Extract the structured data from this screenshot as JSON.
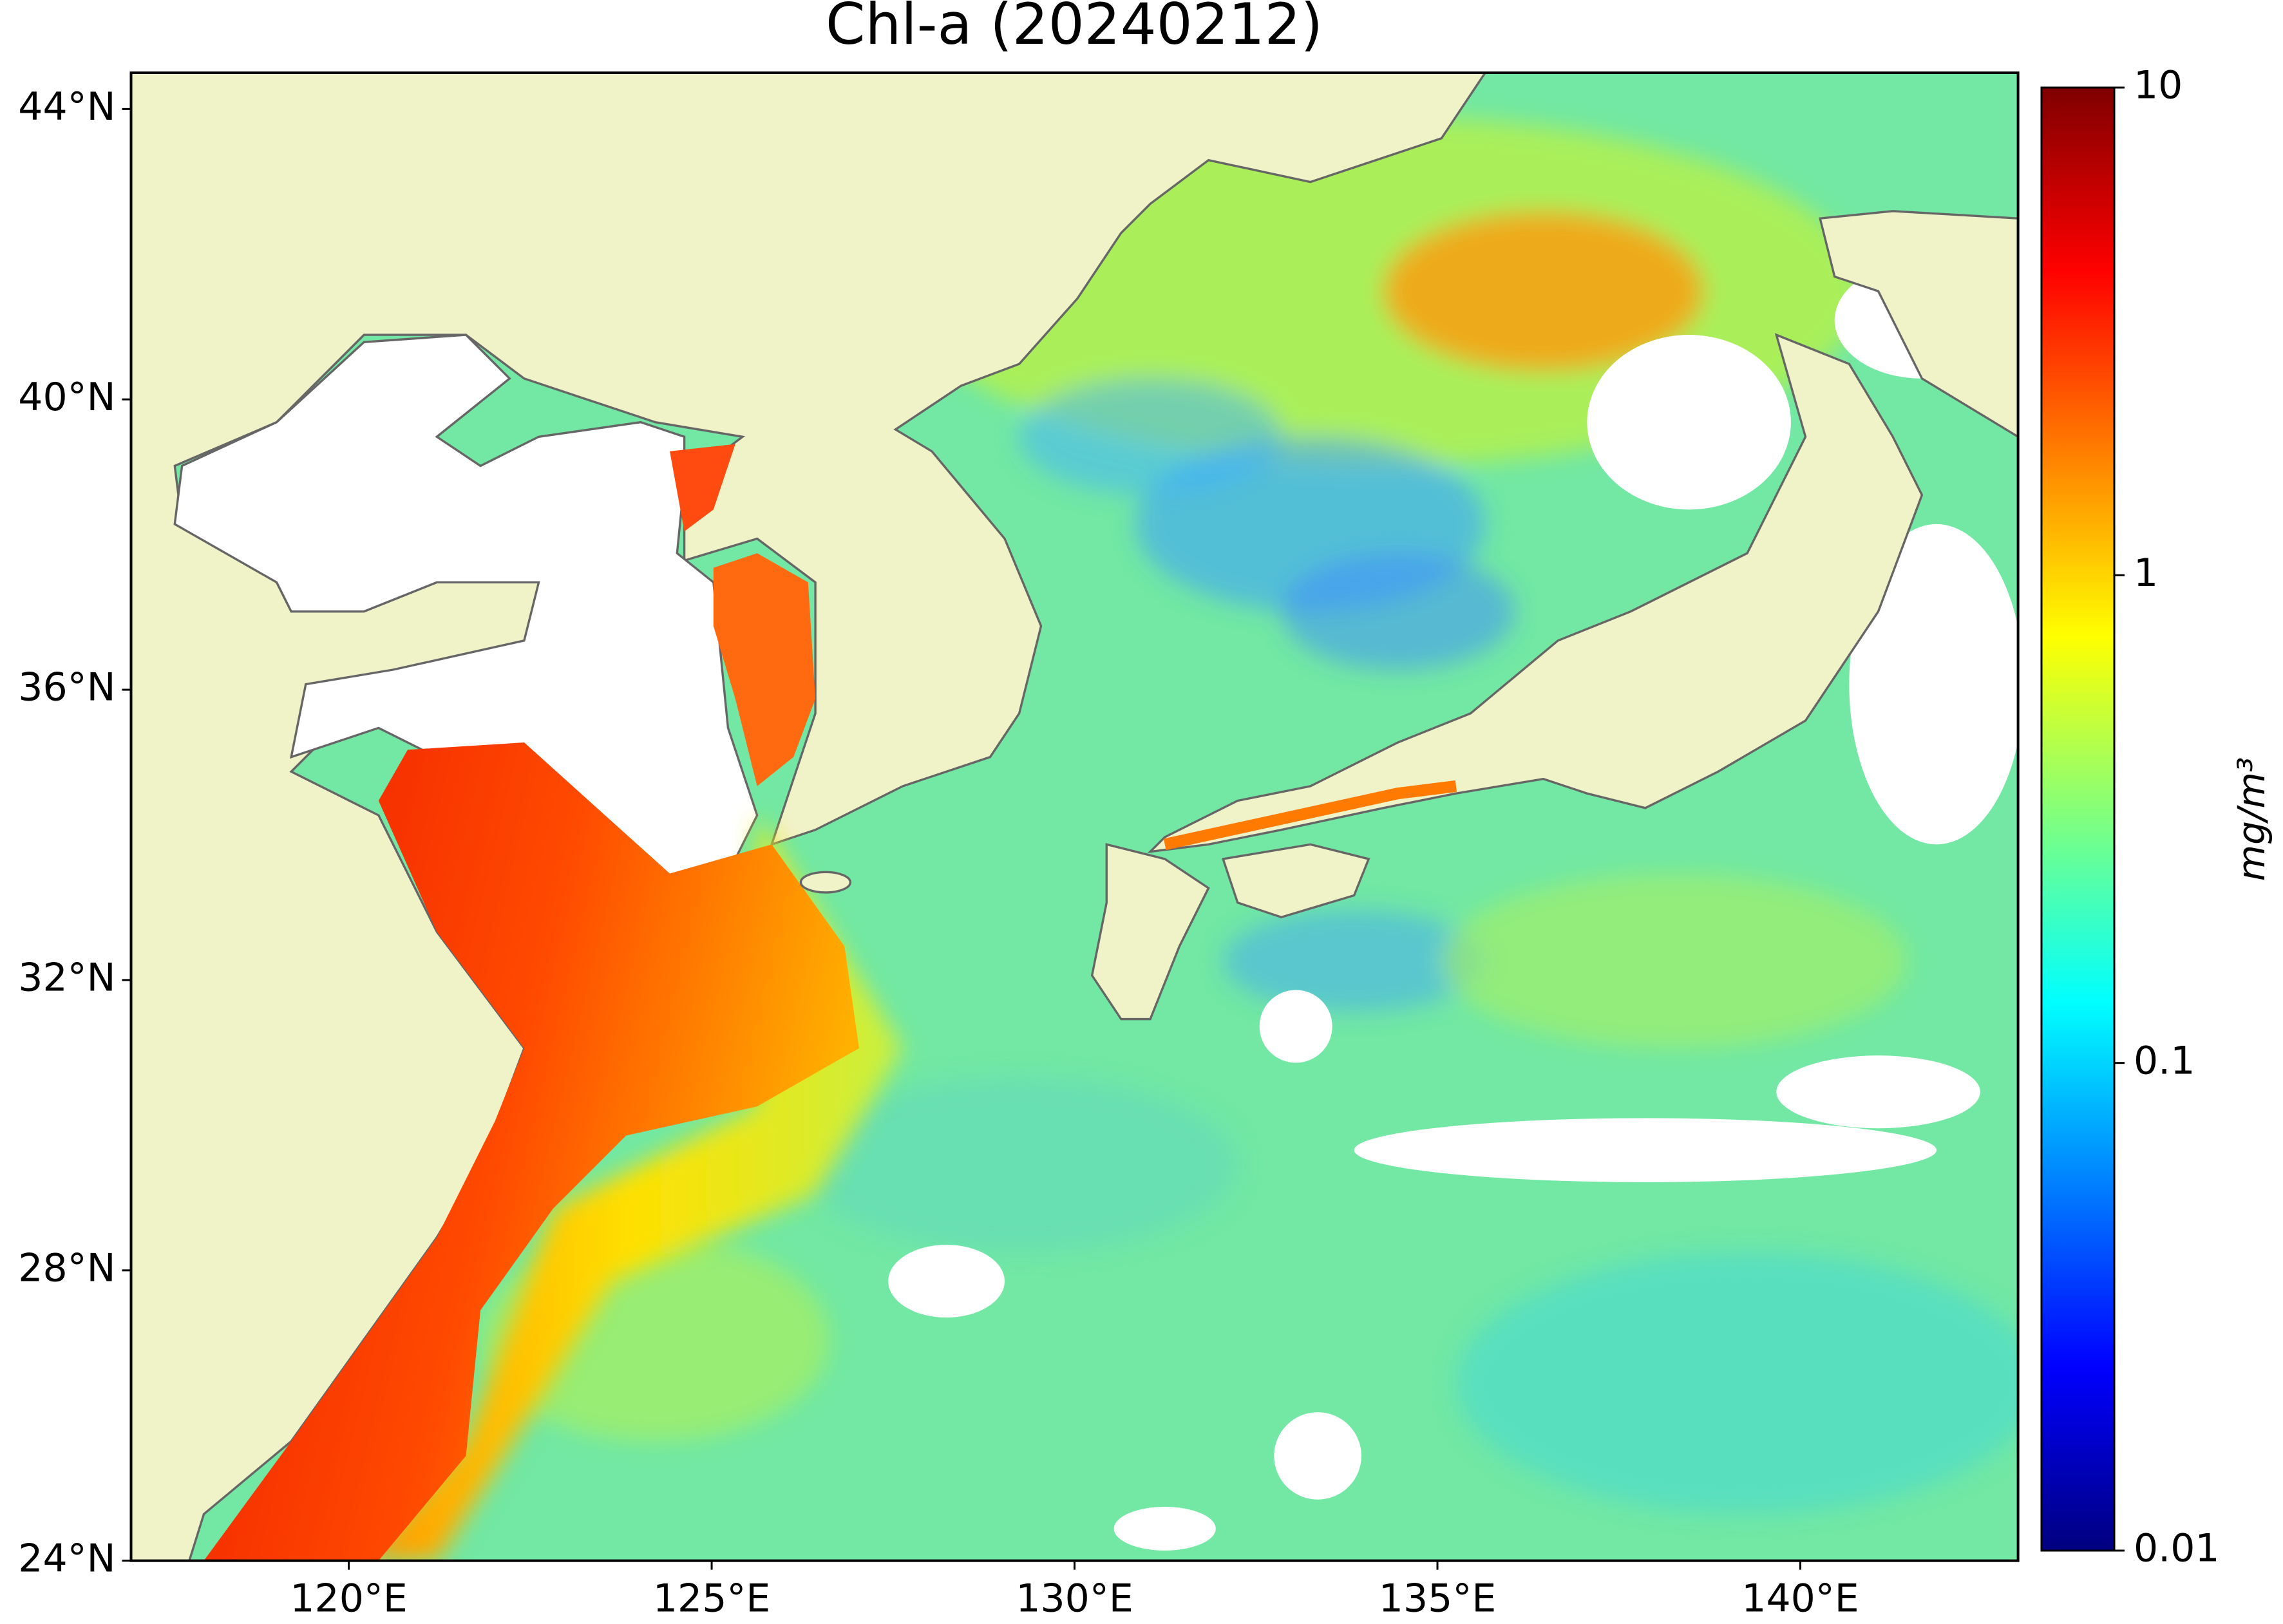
{
  "map": {
    "title": "Chl-a (20240212)",
    "xlim": [
      117,
      143
    ],
    "ylim": [
      24,
      44.5
    ],
    "xticks": [
      {
        "value": 120,
        "label": "120°E"
      },
      {
        "value": 125,
        "label": "125°E"
      },
      {
        "value": 130,
        "label": "130°E"
      },
      {
        "value": 135,
        "label": "135°E"
      },
      {
        "value": 140,
        "label": "140°E"
      }
    ],
    "yticks": [
      {
        "value": 24,
        "label": "24°N"
      },
      {
        "value": 28,
        "label": "28°N"
      },
      {
        "value": 32,
        "label": "32°N"
      },
      {
        "value": 36,
        "label": "36°N"
      },
      {
        "value": 40,
        "label": "40°N"
      },
      {
        "value": 44,
        "label": "44°N"
      }
    ],
    "colorbar": {
      "label": "mg/m³",
      "log": true,
      "lim": [
        0.01,
        10
      ],
      "ticks": [
        0.01,
        0.1,
        1,
        10
      ],
      "colormap": [
        "#00007f",
        "#0000ff",
        "#007fff",
        "#00ffff",
        "#7fff7f",
        "#ffff00",
        "#ff7f00",
        "#ff0000",
        "#7f0000"
      ]
    }
  }
}
